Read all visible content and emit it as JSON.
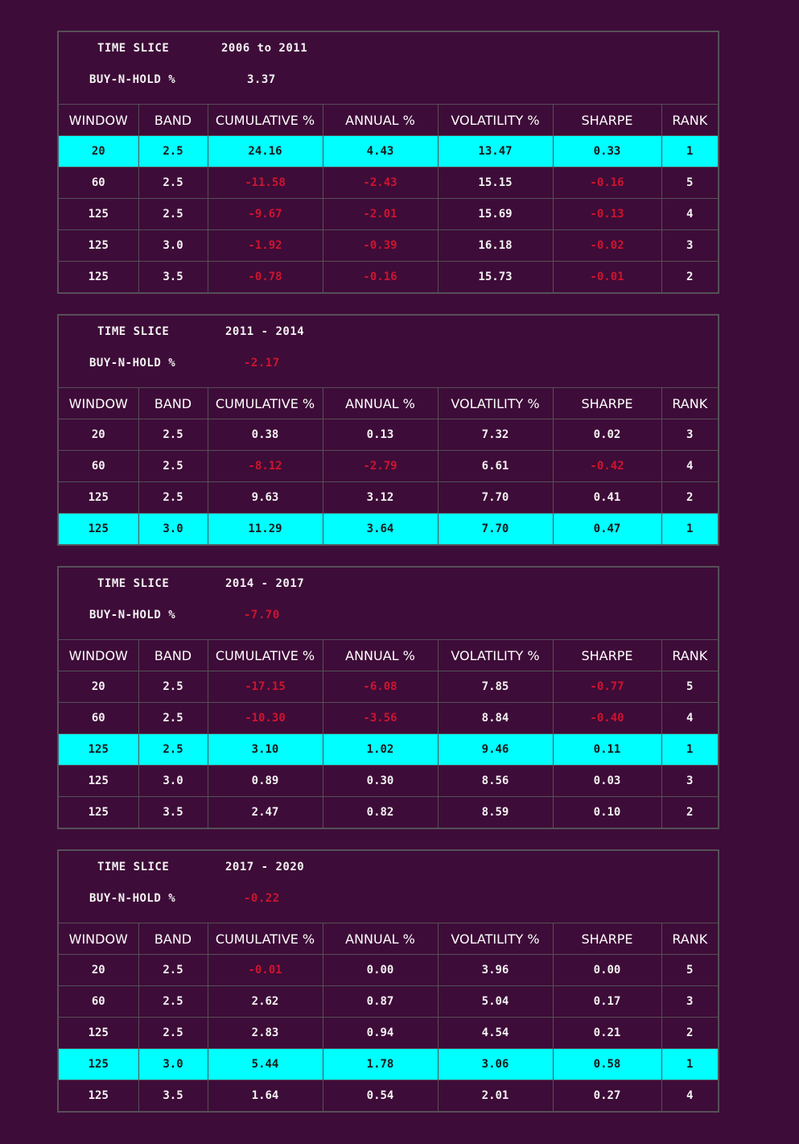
{
  "labels": {
    "time_slice": "TIME SLICE",
    "buy_n_hold": "BUY-N-HOLD %"
  },
  "columns": [
    "WINDOW",
    "BAND",
    "CUMULATIVE %",
    "ANNUAL %",
    "VOLATILITY %",
    "SHARPE",
    "RANK"
  ],
  "colors": {
    "background": "#3e0c38",
    "highlight": "#00ffff",
    "negative": "#cc1530",
    "border": "#555058"
  },
  "panels": [
    {
      "time_slice": "2006 to 2011",
      "buy_n_hold": "3.37",
      "rows": [
        {
          "window": "20",
          "band": "2.5",
          "cumulative": "24.16",
          "annual": "4.43",
          "volatility": "13.47",
          "sharpe": "0.33",
          "rank": "1",
          "best": true
        },
        {
          "window": "60",
          "band": "2.5",
          "cumulative": "-11.58",
          "annual": "-2.43",
          "volatility": "15.15",
          "sharpe": "-0.16",
          "rank": "5"
        },
        {
          "window": "125",
          "band": "2.5",
          "cumulative": "-9.67",
          "annual": "-2.01",
          "volatility": "15.69",
          "sharpe": "-0.13",
          "rank": "4"
        },
        {
          "window": "125",
          "band": "3.0",
          "cumulative": "-1.92",
          "annual": "-0.39",
          "volatility": "16.18",
          "sharpe": "-0.02",
          "rank": "3"
        },
        {
          "window": "125",
          "band": "3.5",
          "cumulative": "-0.78",
          "annual": "-0.16",
          "volatility": "15.73",
          "sharpe": "-0.01",
          "rank": "2"
        }
      ]
    },
    {
      "time_slice": "2011 - 2014",
      "buy_n_hold": "-2.17",
      "rows": [
        {
          "window": "20",
          "band": "2.5",
          "cumulative": "0.38",
          "annual": "0.13",
          "volatility": "7.32",
          "sharpe": "0.02",
          "rank": "3"
        },
        {
          "window": "60",
          "band": "2.5",
          "cumulative": "-8.12",
          "annual": "-2.79",
          "volatility": "6.61",
          "sharpe": "-0.42",
          "rank": "4"
        },
        {
          "window": "125",
          "band": "2.5",
          "cumulative": "9.63",
          "annual": "3.12",
          "volatility": "7.70",
          "sharpe": "0.41",
          "rank": "2"
        },
        {
          "window": "125",
          "band": "3.0",
          "cumulative": "11.29",
          "annual": "3.64",
          "volatility": "7.70",
          "sharpe": "0.47",
          "rank": "1",
          "best": true
        }
      ]
    },
    {
      "time_slice": "2014 - 2017",
      "buy_n_hold": "-7.70",
      "rows": [
        {
          "window": "20",
          "band": "2.5",
          "cumulative": "-17.15",
          "annual": "-6.08",
          "volatility": "7.85",
          "sharpe": "-0.77",
          "rank": "5"
        },
        {
          "window": "60",
          "band": "2.5",
          "cumulative": "-10.30",
          "annual": "-3.56",
          "volatility": "8.84",
          "sharpe": "-0.40",
          "rank": "4"
        },
        {
          "window": "125",
          "band": "2.5",
          "cumulative": "3.10",
          "annual": "1.02",
          "volatility": "9.46",
          "sharpe": "0.11",
          "rank": "1",
          "best": true
        },
        {
          "window": "125",
          "band": "3.0",
          "cumulative": "0.89",
          "annual": "0.30",
          "volatility": "8.56",
          "sharpe": "0.03",
          "rank": "3"
        },
        {
          "window": "125",
          "band": "3.5",
          "cumulative": "2.47",
          "annual": "0.82",
          "volatility": "8.59",
          "sharpe": "0.10",
          "rank": "2"
        }
      ]
    },
    {
      "time_slice": "2017 - 2020",
      "buy_n_hold": "-0.22",
      "rows": [
        {
          "window": "20",
          "band": "2.5",
          "cumulative": "-0.01",
          "annual": "0.00",
          "volatility": "3.96",
          "sharpe": "0.00",
          "rank": "5"
        },
        {
          "window": "60",
          "band": "2.5",
          "cumulative": "2.62",
          "annual": "0.87",
          "volatility": "5.04",
          "sharpe": "0.17",
          "rank": "3"
        },
        {
          "window": "125",
          "band": "2.5",
          "cumulative": "2.83",
          "annual": "0.94",
          "volatility": "4.54",
          "sharpe": "0.21",
          "rank": "2"
        },
        {
          "window": "125",
          "band": "3.0",
          "cumulative": "5.44",
          "annual": "1.78",
          "volatility": "3.06",
          "sharpe": "0.58",
          "rank": "1",
          "best": true
        },
        {
          "window": "125",
          "band": "3.5",
          "cumulative": "1.64",
          "annual": "0.54",
          "volatility": "2.01",
          "sharpe": "0.27",
          "rank": "4"
        }
      ]
    }
  ]
}
